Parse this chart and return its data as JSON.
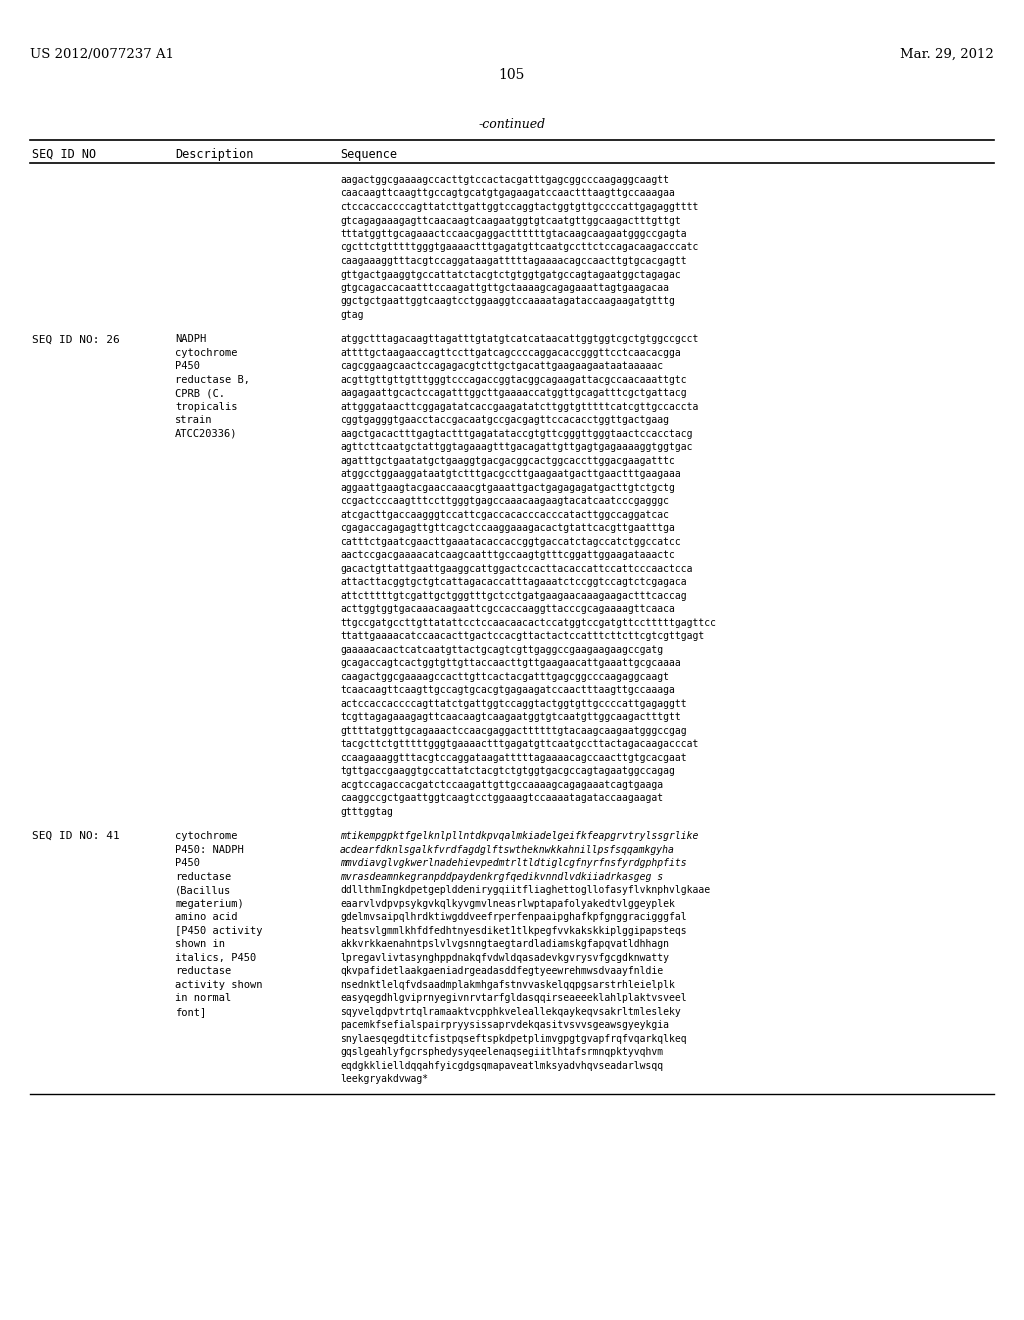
{
  "header_left": "US 2012/0077237 A1",
  "header_right": "Mar. 29, 2012",
  "page_number": "105",
  "continued_label": "-continued",
  "table_headers": [
    "SEQ ID NO",
    "Description",
    "Sequence"
  ],
  "background_color": "#ffffff",
  "text_color": "#000000",
  "section0_seq_lines": [
    "aagactggcgaaaagccacttgtccactacgatttgagcggcccaagaggcaagtt",
    "caacaagttcaagttgccagtgcatgtgagaagatccaactttaagttgccaaagaa",
    "ctccaccaccccagttatcttgattggtccaggtactggtgttgccccattgagaggtttt",
    "gtcagagaaagagttcaacaagtcaagaatggtgtcaatgttggcaagactttgttgt",
    "tttatggttgcagaaactccaacgaggacttttttgtacaagcaagaatgggccgagta",
    "cgcttctgtttttgggtgaaaactttgagatgttcaatgccttctccagacaagacccatc",
    "caagaaaggtttacgtccaggataagatttttagaaaacagccaacttgtgcacgagtt",
    "gttgactgaaggtgccattatctacgtctgtggtgatgccagtagaatggctagagac",
    "gtgcagaccacaatttccaagattgttgctaaaagcagagaaattagtgaagacaa",
    "ggctgctgaattggtcaagtcctggaaggtccaaaatagataccaagaagatgtttg",
    "gtag"
  ],
  "section1_seq_id": "SEQ ID NO: 26",
  "section1_desc": [
    "NADPH",
    "cytochrome",
    "P450",
    "reductase B,",
    "CPRB (C.",
    "tropicalis",
    "strain",
    "ATCC20336)"
  ],
  "section1_seq_lines": [
    "atggctttagacaagttagatttgtatgtcatcataacattggtggtcgctgtggccgcct",
    "attttgctaagaaccagttccttgatcagccccaggacaccgggttcctcaacacgga",
    "cagcggaagcaactccagagacgtcttgctgacattgaagaagaataataaaaac",
    "acgttgttgttgtttgggtcccagaccggtacggcagaagattacgccaacaaattgtc",
    "aagagaattgcactccagatttggcttgaaaaccatggttgcagatttcgctgattacg",
    "attgggataacttcggagatatcaccgaagatatcttggtgtttttcatcgttgccaccta",
    "cggtgagggtgaacctaccgacaatgccgacgagttccacacctggttgactgaag",
    "aagctgacactttgagtactttgagatataccgtgttcgggttgggtaactccacctacg",
    "agttcttcaatgctattggtagaaagtttgacagattgttgagtgagaaaaggtggtgac",
    "agatttgctgaatatgctgaaggtgacgacggcactggcaccttggacgaagatttc",
    "atggcctggaaggataatgtctttgacgccttgaagaatgacttgaactttgaagaaa",
    "aggaattgaagtacgaaccaaacgtgaaattgactgagagagatgacttgtctgctg",
    "ccgactcccaagtttccttgggtgagccaaacaagaagtacatcaatcccgagggc",
    "atcgacttgaccaagggtccattcgaccacacccacccatacttggccaggatcac",
    "cgagaccagagagttgttcagctccaaggaaagacactgtattcacgttgaatttga",
    "catttctgaatcgaacttgaaatacaccaccggtgaccatctagccatctggccatcc",
    "aactccgacgaaaacatcaagcaatttgccaagtgtttcggattggaagataaactc",
    "gacactgttattgaattgaaggcattggactccacttacaccattccattcccaactcca",
    "attacttacggtgctgtcattagacaccatttagaaatctccggtccagtctcgagaca",
    "attctttttgtcgattgctgggtttgctcctgatgaagaacaaagaagactttcaccag",
    "acttggtggtgacaaacaagaattcgccaccaaggttacccgcagaaaagttcaaca",
    "ttgccgatgccttgttatattcctccaacaacactccatggtccgatgttcctttttgagttcc",
    "ttattgaaaacatccaacacttgactccacgttactactccatttcttcttcgtcgttgagt",
    "gaaaaacaactcatcaatgttactgcagtcgttgaggccgaagaagaagccgatg",
    "gcagaccagtcactggtgttgttaccaacttgttgaagaacattgaaattgcgcaaaa",
    "caagactggcgaaaagccacttgttcactacgatttgagcggcccaagaggcaagt",
    "tcaacaagttcaagttgccagtgcacgtgagaagatccaactttaagttgccaaaga",
    "actccaccaccccagttatctgattggtccaggtactggtgttgccccattgagaggtt",
    "tcgttagagaaagagttcaacaagtcaagaatggtgtcaatgttggcaagactttgtt",
    "gttttatggttgcagaaactccaacgaggacttttttgtacaagcaagaatgggccgag",
    "tacgcttctgtttttgggtgaaaactttgagatgttcaatgccttactagacaagacccat",
    "ccaagaaaggtttacgtccaggataagatttttagaaaacagccaacttgtgcacgaat",
    "tgttgaccgaaggtgccattatctacgtctgtggtgacgccagtagaatggccagag",
    "acgtccagaccacgatctccaagattgttgccaaaagcagagaaatcagtgaaga",
    "caaggccgctgaattggtcaagtcctggaaagtccaaaatagataccaagaagat",
    "gtttggtag"
  ],
  "section2_seq_id": "SEQ ID NO: 41",
  "section2_desc": [
    "cytochrome",
    "P450: NADPH",
    "P450",
    "reductase",
    "(Bacillus",
    "megaterium)",
    "amino acid",
    "[P450 activity",
    "shown in",
    "italics, P450",
    "reductase",
    "activity shown",
    "in normal",
    "font]"
  ],
  "section2_seq_italic": [
    "mtikempgpktfgelknlpllntdkpvqalmkiadelgeifkfeapgrvtrylssgrlike",
    "acdearfdknlsgalkfvrdfagdglftswtheknwkkahnillpsfsqqamkgyha",
    "mmvdiavglvgkwerlnadehievpedmtrltldtiglcgfnyrfnsfyrdgphpfits",
    "mvrasdeamnkegranpddpaydenkrgfqedikvnndlvdkiiadrkasgeg s"
  ],
  "section2_seq_normal": [
    "ddllthmIngkdpetgeplddenirygqiitfliaghettogllofasyflvknphvlgkaae",
    "eaarvlvdpvpsykgvkqlkyvgmvlneasrlwptapafolyakedtvlggeyplek",
    "gdelmvsaipqlhrdktiwgddveefrperfenpaaipghafkpfgnggracigggfal",
    "heatsvlgmmlkhfdfedhtnyesdiket1tlkpegfvvkakskkiplggipapsteqs",
    "akkvrkkaenahntpslvlvgsnngtaegtardladiamskgfapqvatldhhagn",
    "lpregavlivtasynghppdnakqfvdwldqasadevkgvrysvfgcgdknwatty",
    "qkvpafidetlaakgaeniadrgeadasddfegtyeewrehmwsdvaayfnldie",
    "nsednktlelqfvdsaadmplakmhgafstnvvaskelqqpgsarstrhleielplk",
    "easyqegdhlgviprnyegivnrvtarfgldasqqirseaeeeklahlplaktvsveel",
    "sqyvelqdpvtrtqlramaaktvcpphkveleallekqaykeqvsakrltmlesleky",
    "pacemkfsefialspairpryysissaprvdekqasitvsvvsgeawsgyeykgia",
    "snylaesqegdtitcfistpqseftspkdpetplimvgpgtgvapfrqfvqarkqlkeq",
    "gqslgeahlyfgcrsphedysyqeelenaqsegiitlhtafsrmnqpktyvqhvm",
    "eqdgkklielldqqahfyicgdgsqmapaveatlmksyadvhqvseadarlwsqq",
    "leekgryakdvwag*"
  ]
}
